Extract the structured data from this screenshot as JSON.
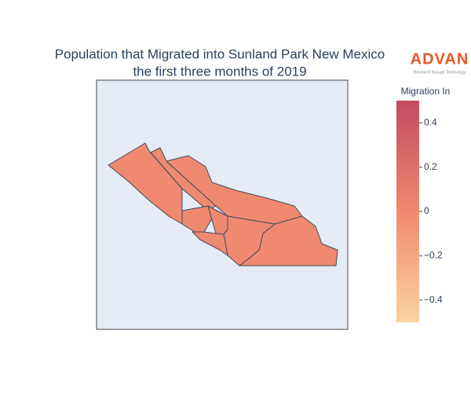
{
  "chart_data": {
    "type": "choropleth",
    "title": [
      "Population that Migrated into Sunland Park New Mexico",
      "the first three months of 2019"
    ],
    "logo": {
      "name": "ADVAN",
      "tagline": "Research through Technology"
    },
    "colorbar_title": "Migration In",
    "values": [
      0,
      0,
      0,
      0,
      0,
      0,
      0,
      0
    ],
    "clim": [
      -0.5,
      0.5
    ],
    "colorscale": [
      "#fbd4a0",
      "#ef896f",
      "#c44a62"
    ],
    "cticks": [
      {
        "value": -0.4,
        "label": "−0.4"
      },
      {
        "value": -0.2,
        "label": "−0.2"
      },
      0,
      0.2,
      0.4
    ],
    "background": "#e5ecf6"
  }
}
